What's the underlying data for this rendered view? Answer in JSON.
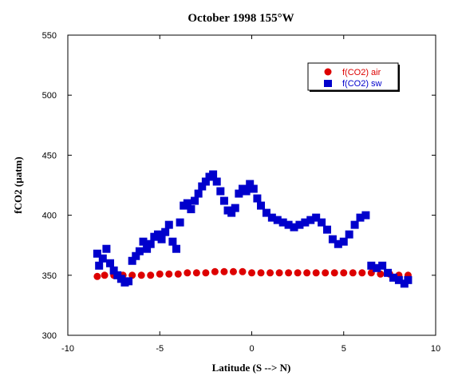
{
  "chart_data": {
    "type": "scatter",
    "title": "October 1998 155°W",
    "xlabel": "Latitude (S --> N)",
    "ylabel": "fCO2 (µatm)",
    "xlim": [
      -10,
      10
    ],
    "ylim": [
      300,
      550
    ],
    "x_ticks": [
      -10,
      -5,
      0,
      5,
      10
    ],
    "y_ticks": [
      300,
      350,
      400,
      450,
      500,
      550
    ],
    "grid": false,
    "legend_position": "top-right",
    "series": [
      {
        "name": "f(CO2) air",
        "marker": "circle",
        "color": "#dd0000",
        "x": [
          -8.4,
          -8.0,
          -7.5,
          -7.0,
          -6.5,
          -6.0,
          -5.5,
          -5.0,
          -4.5,
          -4.0,
          -3.5,
          -3.0,
          -2.5,
          -2.0,
          -1.5,
          -1.0,
          -0.5,
          0.0,
          0.5,
          1.0,
          1.5,
          2.0,
          2.5,
          3.0,
          3.5,
          4.0,
          4.5,
          5.0,
          5.5,
          6.0,
          6.5,
          7.0,
          7.5,
          8.0,
          8.5
        ],
        "y": [
          349,
          350,
          350,
          350,
          350,
          350,
          350,
          351,
          351,
          351,
          352,
          352,
          352,
          353,
          353,
          353,
          353,
          352,
          352,
          352,
          352,
          352,
          352,
          352,
          352,
          352,
          352,
          352,
          352,
          352,
          352,
          351,
          351,
          350,
          350
        ]
      },
      {
        "name": "f(CO2) sw",
        "marker": "square",
        "color": "#0000cc",
        "x": [
          -8.4,
          -8.3,
          -8.1,
          -7.9,
          -7.7,
          -7.5,
          -7.3,
          -7.1,
          -6.9,
          -6.7,
          -6.5,
          -6.3,
          -6.1,
          -5.9,
          -5.7,
          -5.5,
          -5.3,
          -5.1,
          -4.9,
          -4.7,
          -4.5,
          -4.3,
          -4.1,
          -3.9,
          -3.7,
          -3.5,
          -3.3,
          -3.1,
          -2.9,
          -2.7,
          -2.5,
          -2.3,
          -2.1,
          -1.9,
          -1.7,
          -1.5,
          -1.3,
          -1.1,
          -0.9,
          -0.7,
          -0.5,
          -0.3,
          -0.1,
          0.1,
          0.3,
          0.5,
          0.8,
          1.1,
          1.4,
          1.7,
          2.0,
          2.3,
          2.6,
          2.9,
          3.2,
          3.5,
          3.8,
          4.1,
          4.4,
          4.7,
          5.0,
          5.3,
          5.6,
          5.9,
          6.2,
          6.5,
          6.8,
          7.1,
          7.4,
          7.7,
          8.0,
          8.3,
          8.5
        ],
        "y": [
          368,
          358,
          364,
          372,
          360,
          354,
          350,
          347,
          344,
          345,
          362,
          366,
          370,
          378,
          372,
          376,
          382,
          384,
          380,
          386,
          392,
          378,
          372,
          394,
          408,
          410,
          405,
          412,
          418,
          424,
          428,
          432,
          434,
          428,
          420,
          412,
          404,
          402,
          406,
          418,
          422,
          420,
          426,
          422,
          414,
          408,
          402,
          398,
          396,
          394,
          392,
          390,
          392,
          394,
          396,
          398,
          394,
          388,
          380,
          376,
          378,
          384,
          392,
          398,
          400,
          358,
          356,
          358,
          352,
          348,
          346,
          343,
          346
        ]
      }
    ]
  }
}
